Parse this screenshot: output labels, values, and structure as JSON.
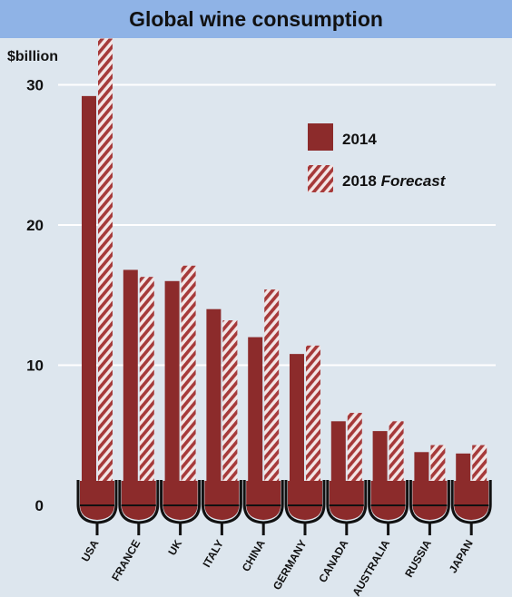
{
  "colors": {
    "background": "#dde6ee",
    "title_bar": "#8fb3e6",
    "bar_2014": "#8c2b2b",
    "bar_2018_stripe": "#a63a3a",
    "glass_outline": "#111111",
    "gridline": "#ffffff"
  },
  "chart_data": {
    "type": "bar",
    "title": "Global wine consumption",
    "ylabel": "$billion",
    "xlabel": "",
    "ylim": [
      0,
      35
    ],
    "yticks": [
      0,
      10,
      20,
      30
    ],
    "grid": true,
    "legend_position": "top-right",
    "categories": [
      "USA",
      "FRANCE",
      "UK",
      "ITALY",
      "CHINA",
      "GERMANY",
      "CANADA",
      "AUSTRALIA",
      "RUSSIA",
      "JAPAN"
    ],
    "series": [
      {
        "name": "2014",
        "style": "solid",
        "values": [
          29.2,
          16.8,
          16.0,
          14.0,
          12.0,
          10.8,
          6.0,
          5.3,
          3.8,
          3.7
        ]
      },
      {
        "name": "2018 Forecast",
        "style": "hatched",
        "values": [
          33.3,
          16.3,
          17.1,
          13.2,
          15.4,
          11.4,
          6.6,
          6.0,
          4.3,
          4.3
        ]
      }
    ],
    "legend": [
      {
        "year": "2014",
        "suffix": ""
      },
      {
        "year": "2018",
        "suffix": "Forecast"
      }
    ]
  }
}
